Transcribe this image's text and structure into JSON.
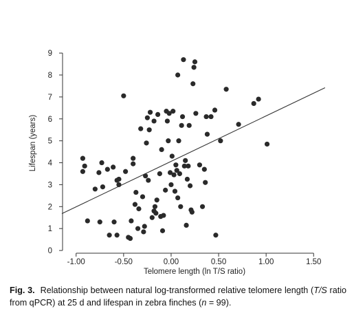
{
  "chart_data": {
    "type": "scatter",
    "xlabel": "Telomere length (ln T/S ratio)",
    "ylabel": "Lifespan (years)",
    "xlim": [
      -1.15,
      1.65
    ],
    "ylim": [
      -0.5,
      9.6
    ],
    "xticks": [
      -1.0,
      -0.5,
      0.0,
      0.5,
      1.0,
      1.5
    ],
    "xtick_labels": [
      "-1.00",
      "-0.50",
      "0.00",
      "0.50",
      "1.00",
      "1.50"
    ],
    "yticks": [
      0,
      1,
      2,
      3,
      4,
      5,
      6,
      7,
      8,
      9
    ],
    "ytick_labels": [
      "0",
      "1",
      "2",
      "3",
      "4",
      "5",
      "6",
      "7",
      "8",
      "9"
    ],
    "grid": false,
    "marker_color": "#2a2a2a",
    "line_color": "#333333",
    "fit_line": {
      "x": [
        -1.15,
        1.62
      ],
      "y": [
        1.68,
        7.42
      ]
    },
    "points": [
      [
        -0.93,
        4.2
      ],
      [
        -0.93,
        3.6
      ],
      [
        -0.91,
        3.85
      ],
      [
        -0.88,
        1.35
      ],
      [
        -0.8,
        2.8
      ],
      [
        -0.76,
        3.55
      ],
      [
        -0.75,
        1.3
      ],
      [
        -0.73,
        4.0
      ],
      [
        -0.72,
        2.9
      ],
      [
        -0.67,
        3.7
      ],
      [
        -0.65,
        0.7
      ],
      [
        -0.61,
        3.8
      ],
      [
        -0.6,
        1.3
      ],
      [
        -0.57,
        0.7
      ],
      [
        -0.57,
        3.2
      ],
      [
        -0.55,
        3.0
      ],
      [
        -0.55,
        3.25
      ],
      [
        -0.5,
        7.05
      ],
      [
        -0.48,
        3.6
      ],
      [
        -0.45,
        0.6
      ],
      [
        -0.43,
        0.55
      ],
      [
        -0.42,
        1.35
      ],
      [
        -0.4,
        3.95
      ],
      [
        -0.4,
        4.2
      ],
      [
        -0.38,
        2.1
      ],
      [
        -0.37,
        2.65
      ],
      [
        -0.35,
        1.0
      ],
      [
        -0.34,
        1.9
      ],
      [
        -0.32,
        5.55
      ],
      [
        -0.3,
        2.45
      ],
      [
        -0.29,
        0.85
      ],
      [
        -0.28,
        1.1
      ],
      [
        -0.27,
        3.4
      ],
      [
        -0.26,
        4.9
      ],
      [
        -0.25,
        6.05
      ],
      [
        -0.24,
        3.2
      ],
      [
        -0.23,
        5.5
      ],
      [
        -0.22,
        6.3
      ],
      [
        -0.2,
        1.5
      ],
      [
        -0.18,
        5.9
      ],
      [
        -0.17,
        2.0
      ],
      [
        -0.16,
        1.7
      ],
      [
        -0.15,
        2.3
      ],
      [
        -0.14,
        6.2
      ],
      [
        -0.12,
        3.5
      ],
      [
        -0.11,
        1.55
      ],
      [
        -0.1,
        4.6
      ],
      [
        -0.09,
        0.9
      ],
      [
        -0.08,
        1.6
      ],
      [
        -0.06,
        2.75
      ],
      [
        -0.05,
        6.35
      ],
      [
        -0.04,
        5.9
      ],
      [
        -0.03,
        5.0
      ],
      [
        -0.02,
        6.25
      ],
      [
        -0.01,
        3.55
      ],
      [
        0.0,
        3.0
      ],
      [
        0.01,
        4.3
      ],
      [
        0.02,
        6.35
      ],
      [
        0.03,
        3.45
      ],
      [
        0.04,
        2.7
      ],
      [
        0.05,
        3.9
      ],
      [
        0.06,
        3.65
      ],
      [
        0.07,
        8.0
      ],
      [
        0.08,
        5.0
      ],
      [
        0.09,
        3.5
      ],
      [
        0.1,
        2.0
      ],
      [
        0.11,
        5.7
      ],
      [
        0.12,
        6.1
      ],
      [
        0.13,
        8.7
      ],
      [
        0.14,
        3.85
      ],
      [
        0.15,
        4.1
      ],
      [
        0.16,
        1.15
      ],
      [
        0.17,
        3.25
      ],
      [
        0.18,
        3.85
      ],
      [
        0.19,
        5.7
      ],
      [
        0.2,
        2.95
      ],
      [
        0.21,
        1.85
      ],
      [
        0.22,
        1.75
      ],
      [
        0.23,
        7.6
      ],
      [
        0.24,
        8.35
      ],
      [
        0.25,
        8.6
      ],
      [
        0.26,
        6.25
      ],
      [
        0.3,
        3.9
      ],
      [
        0.33,
        2.0
      ],
      [
        0.35,
        3.7
      ],
      [
        0.36,
        3.1
      ],
      [
        0.37,
        6.1
      ],
      [
        0.38,
        5.3
      ],
      [
        0.42,
        6.1
      ],
      [
        0.46,
        6.4
      ],
      [
        0.47,
        0.7
      ],
      [
        0.52,
        5.0
      ],
      [
        0.58,
        7.35
      ],
      [
        0.71,
        5.75
      ],
      [
        0.87,
        6.7
      ],
      [
        0.92,
        6.9
      ],
      [
        1.01,
        4.85
      ],
      [
        -0.18,
        1.8
      ],
      [
        0.07,
        2.4
      ]
    ]
  },
  "caption": {
    "label": "Fig. 3.",
    "text_1": "Relationship between natural log-transformed relative telomere length (",
    "italic_1": "T/S",
    "text_2": " ratio from qPCR) at 25 d and lifespan in zebra finches (",
    "italic_2": "n",
    "text_3": " = 99)."
  }
}
